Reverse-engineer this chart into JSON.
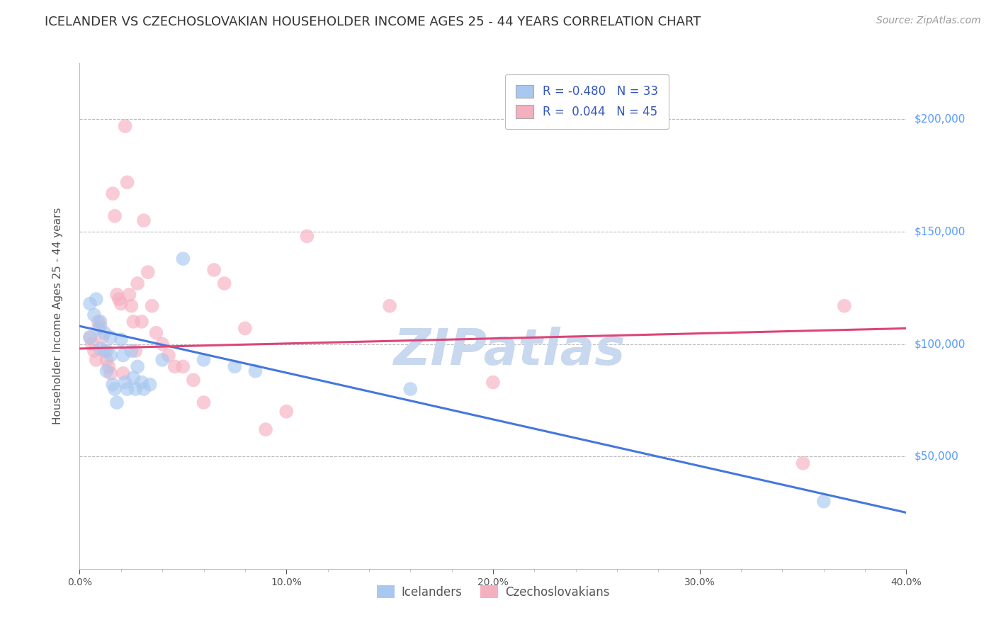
{
  "title": "ICELANDER VS CZECHOSLOVAKIAN HOUSEHOLDER INCOME AGES 25 - 44 YEARS CORRELATION CHART",
  "source": "Source: ZipAtlas.com",
  "ylabel": "Householder Income Ages 25 - 44 years",
  "xlim": [
    0.0,
    0.4
  ],
  "ylim": [
    0,
    225000
  ],
  "ytick_labels": [
    "$50,000",
    "$100,000",
    "$150,000",
    "$200,000"
  ],
  "ytick_values": [
    50000,
    100000,
    150000,
    200000
  ],
  "blue_label": "Icelanders",
  "pink_label": "Czechoslovakians",
  "blue_R": -0.48,
  "blue_N": 33,
  "pink_R": 0.044,
  "pink_N": 45,
  "blue_color": "#A8C8F0",
  "pink_color": "#F5B0C0",
  "blue_line_color": "#4477DD",
  "pink_line_color": "#DD4477",
  "watermark": "ZIPatlas",
  "blue_scatter_x": [
    0.005,
    0.005,
    0.007,
    0.008,
    0.009,
    0.01,
    0.01,
    0.012,
    0.013,
    0.013,
    0.015,
    0.015,
    0.016,
    0.017,
    0.018,
    0.02,
    0.021,
    0.022,
    0.023,
    0.025,
    0.026,
    0.027,
    0.028,
    0.03,
    0.031,
    0.034,
    0.04,
    0.05,
    0.06,
    0.075,
    0.085,
    0.16,
    0.36
  ],
  "blue_scatter_y": [
    103000,
    118000,
    113000,
    120000,
    107000,
    98000,
    110000,
    105000,
    97000,
    88000,
    103000,
    95000,
    82000,
    80000,
    74000,
    102000,
    95000,
    83000,
    80000,
    97000,
    85000,
    80000,
    90000,
    83000,
    80000,
    82000,
    93000,
    138000,
    93000,
    90000,
    88000,
    80000,
    30000
  ],
  "pink_scatter_x": [
    0.005,
    0.006,
    0.007,
    0.008,
    0.009,
    0.01,
    0.011,
    0.012,
    0.013,
    0.014,
    0.015,
    0.016,
    0.017,
    0.018,
    0.019,
    0.02,
    0.021,
    0.022,
    0.023,
    0.024,
    0.025,
    0.026,
    0.027,
    0.028,
    0.03,
    0.031,
    0.033,
    0.035,
    0.037,
    0.04,
    0.043,
    0.046,
    0.05,
    0.055,
    0.06,
    0.065,
    0.07,
    0.08,
    0.09,
    0.1,
    0.11,
    0.15,
    0.2,
    0.35,
    0.37
  ],
  "pink_scatter_y": [
    103000,
    100000,
    97000,
    93000,
    110000,
    108000,
    103000,
    97000,
    93000,
    90000,
    87000,
    167000,
    157000,
    122000,
    120000,
    118000,
    87000,
    197000,
    172000,
    122000,
    117000,
    110000,
    97000,
    127000,
    110000,
    155000,
    132000,
    117000,
    105000,
    100000,
    95000,
    90000,
    90000,
    84000,
    74000,
    133000,
    127000,
    107000,
    62000,
    70000,
    148000,
    117000,
    83000,
    47000,
    117000
  ],
  "blue_trend_x": [
    0.0,
    0.4
  ],
  "blue_trend_y": [
    108000,
    25000
  ],
  "pink_trend_x": [
    0.0,
    0.4
  ],
  "pink_trend_y": [
    98000,
    107000
  ],
  "background_color": "#FFFFFF",
  "grid_color": "#BBBBBB",
  "title_color": "#333333",
  "ytick_color": "#5599FF",
  "title_fontsize": 13,
  "axis_label_fontsize": 11,
  "tick_fontsize": 10,
  "source_fontsize": 10,
  "watermark_fontsize": 52,
  "watermark_color": "#C8D8EE",
  "legend_fontsize": 12,
  "legend_R_N_color": "#3355BB"
}
